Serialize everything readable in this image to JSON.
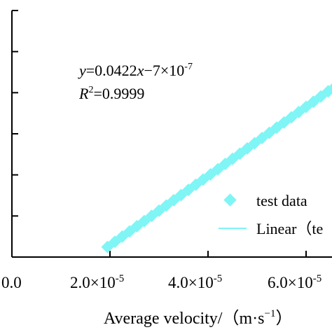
{
  "chart_data": {
    "type": "scatter",
    "title": "",
    "xlabel": "Average velocity/（m·s",
    "xlabel_exp": "−1",
    "xlabel_close": "）",
    "ylabel": "",
    "x_tick_labels": [
      {
        "value": 0.0,
        "mant": "0.0",
        "exp": ""
      },
      {
        "value": 2e-05,
        "mant": "2.0×10",
        "exp": "-5"
      },
      {
        "value": 4e-05,
        "mant": "4.0×10",
        "exp": "-5"
      },
      {
        "value": 6e-05,
        "mant": "6.0×10",
        "exp": "-5"
      }
    ],
    "y_ticks_count": 6,
    "xlim": [
      0,
      7.2e-05
    ],
    "ylim": [
      0,
      3.2e-06
    ],
    "equation": {
      "y_var": "y",
      "rest": "=0.0422",
      "x_var": "x",
      "tail": "−7×10",
      "exp": "-7"
    },
    "r2": {
      "r": "R",
      "sup": "2",
      "value": "=0.9999"
    },
    "legend": {
      "scatter_label": "test data",
      "line_label": "Linear（te"
    },
    "marker_color": "#7ff5f5",
    "line_color": "#7ff5f5",
    "fit": {
      "slope": 0.0422,
      "intercept": -7e-07
    },
    "series": [
      {
        "x": [
          1.95e-05,
          2.1e-05,
          2.25e-05,
          2.4e-05,
          2.55e-05,
          2.7e-05,
          2.85e-05,
          3e-05,
          3.15e-05,
          3.3e-05,
          3.45e-05,
          3.6e-05,
          3.75e-05,
          3.9e-05,
          4.05e-05,
          4.2e-05,
          4.35e-05,
          4.5e-05,
          4.65e-05,
          4.8e-05,
          4.95e-05,
          5.1e-05,
          5.25e-05,
          5.4e-05,
          5.55e-05,
          5.7e-05,
          5.85e-05,
          6e-05,
          6.15e-05,
          6.3e-05,
          6.45e-05,
          6.6e-05
        ],
        "y": [
          1.23e-07,
          1.86e-07,
          2.5e-07,
          3.13e-07,
          3.76e-07,
          4.39e-07,
          5.03e-07,
          5.66e-07,
          6.29e-07,
          6.93e-07,
          7.56e-07,
          8.19e-07,
          8.83e-07,
          9.46e-07,
          1.009e-06,
          1.072e-06,
          1.136e-06,
          1.199e-06,
          1.262e-06,
          1.326e-06,
          1.389e-06,
          1.452e-06,
          1.516e-06,
          1.579e-06,
          1.642e-06,
          1.705e-06,
          1.769e-06,
          1.832e-06,
          1.895e-06,
          1.959e-06,
          2.022e-06,
          2.085e-06
        ]
      }
    ]
  }
}
